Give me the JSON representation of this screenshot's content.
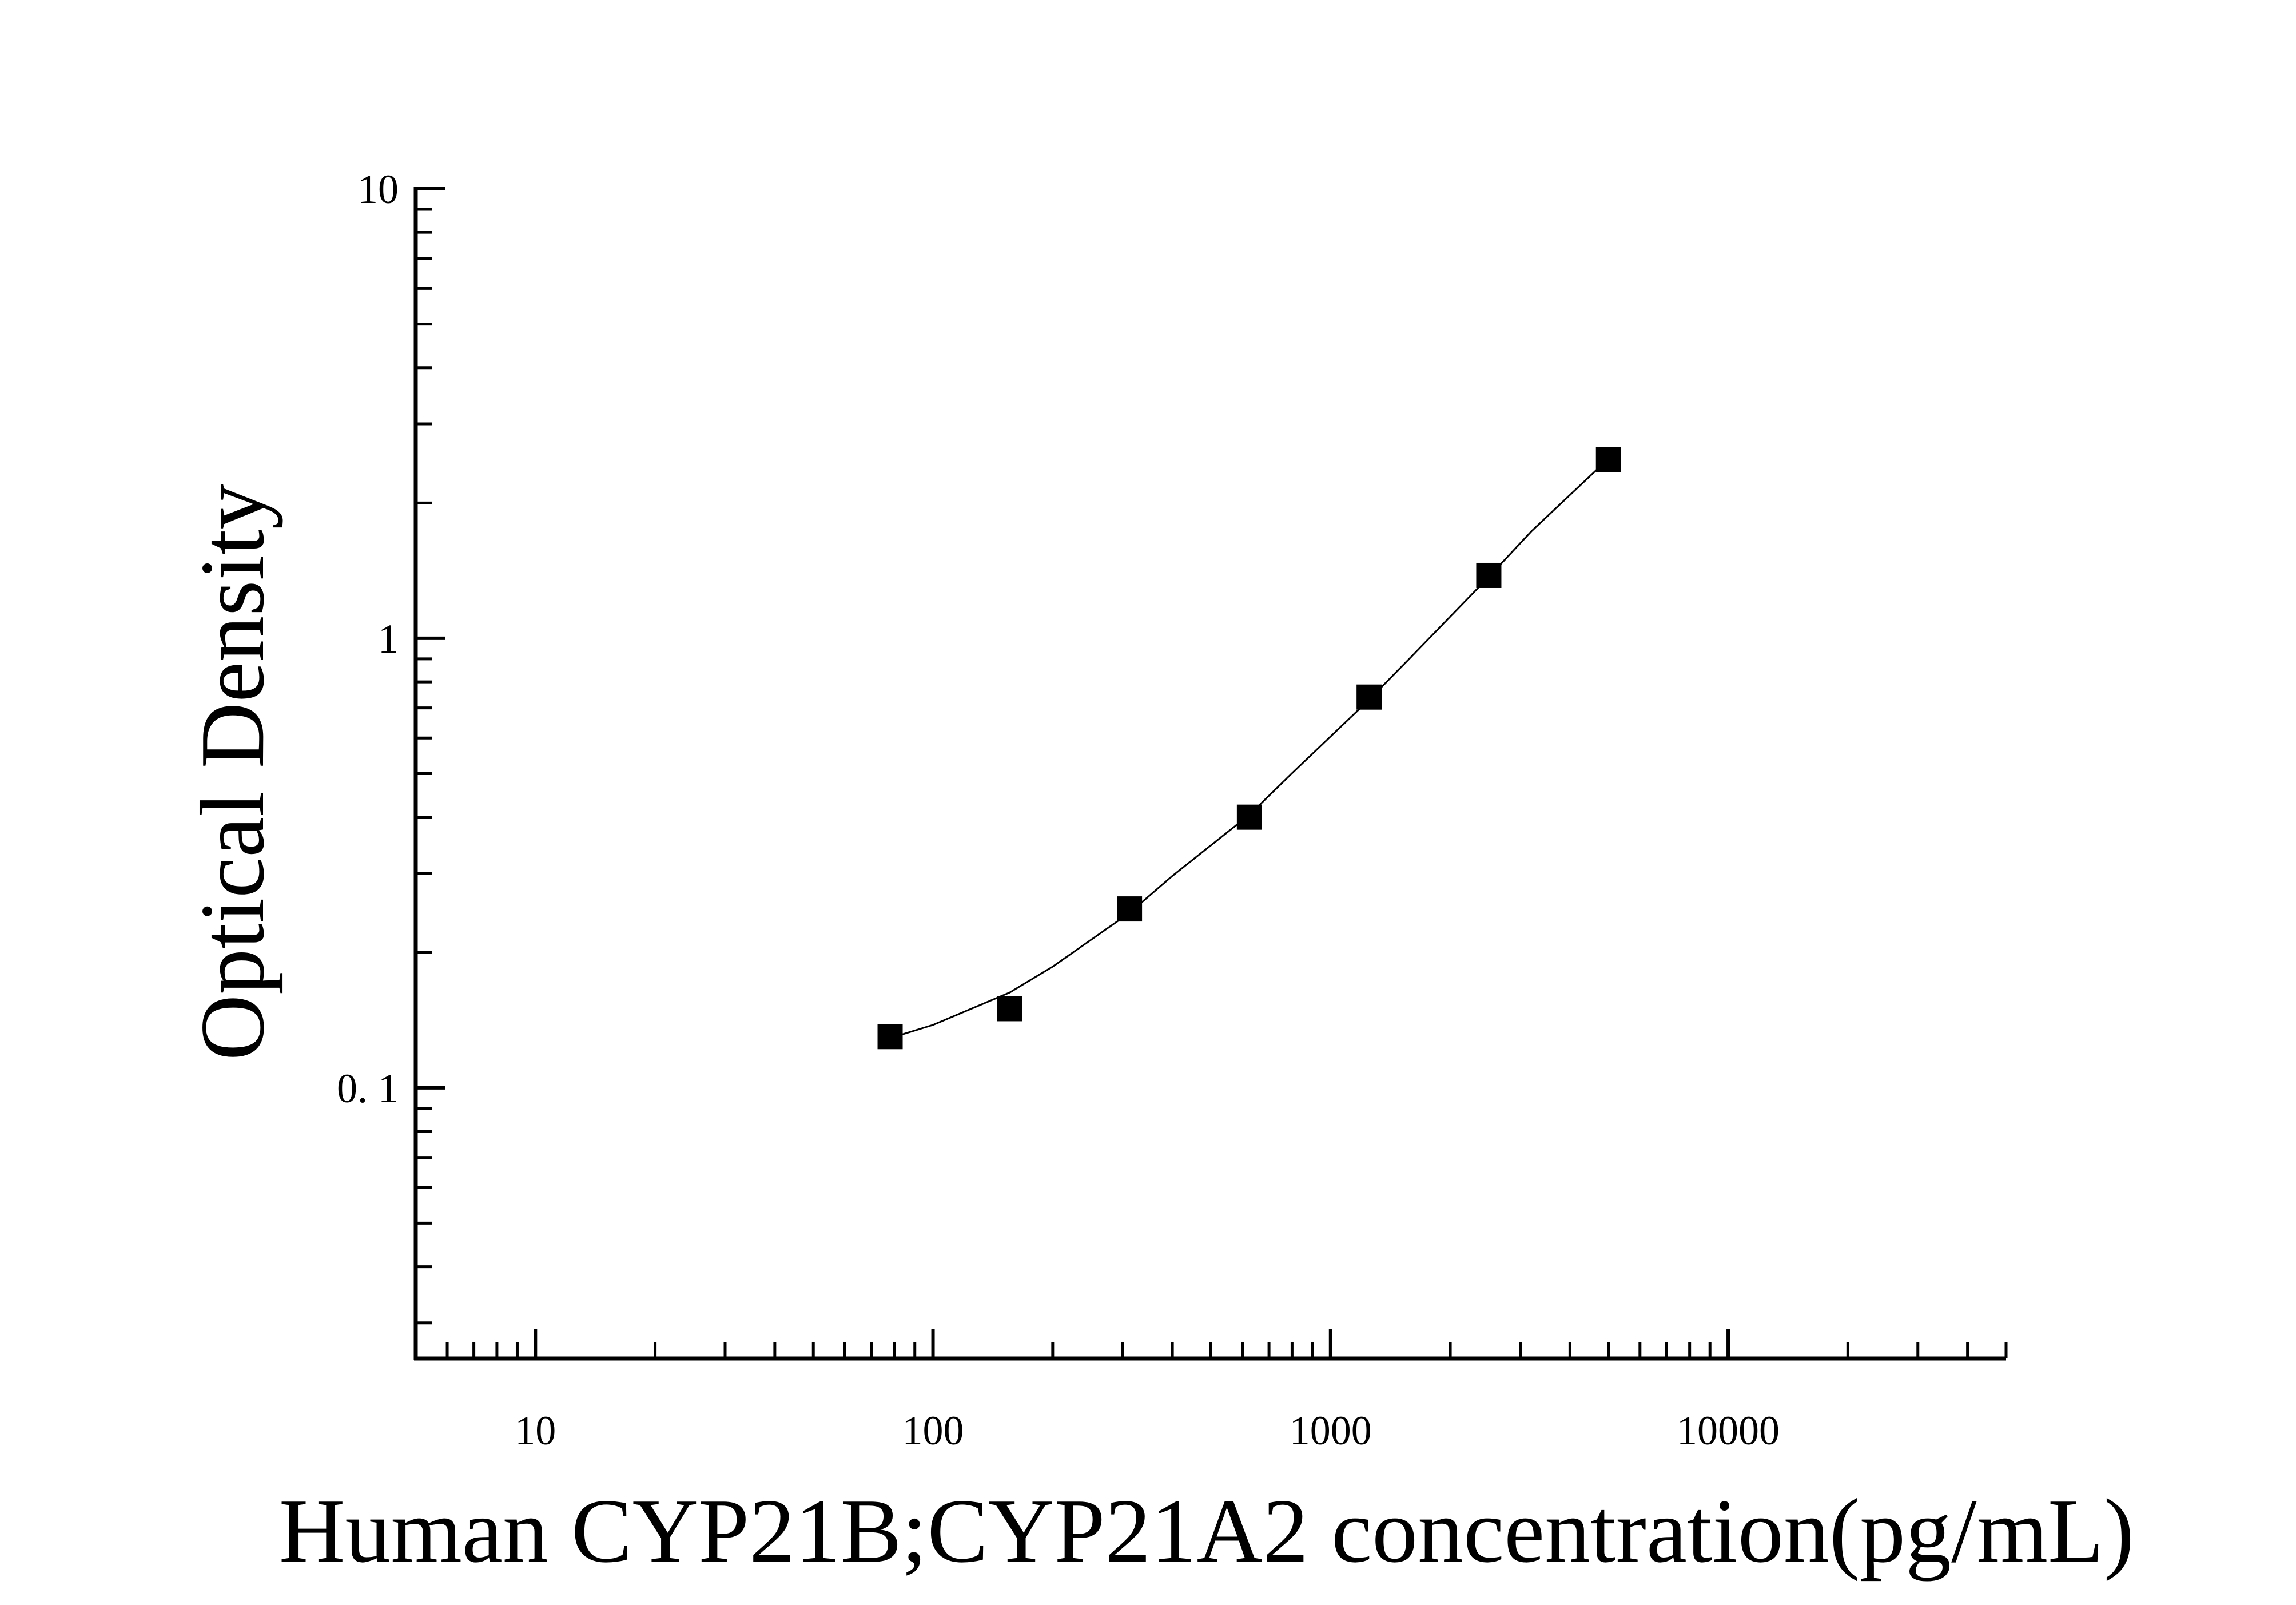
{
  "chart_data": {
    "type": "scatter",
    "xlabel": "Human CYP21B;CYP21A2 concentration(pg/mL)",
    "ylabel": "Optical Density",
    "x_scale": "log",
    "y_scale": "log",
    "xlim": [
      5,
      50000
    ],
    "ylim": [
      0.025,
      10
    ],
    "x_ticks": [
      {
        "value": 10,
        "label": "10"
      },
      {
        "value": 100,
        "label": "100"
      },
      {
        "value": 1000,
        "label": "1000"
      },
      {
        "value": 10000,
        "label": "10000"
      }
    ],
    "y_ticks": [
      {
        "value": 10,
        "label": "10"
      },
      {
        "value": 1,
        "label": "1"
      },
      {
        "value": 0.1,
        "label": "0. 1"
      }
    ],
    "grid": false,
    "legend": "none",
    "marker_color": "#000000",
    "line_color": "#000000",
    "series": [
      {
        "marker": "square",
        "x": [
          78,
          156,
          312,
          625,
          1250,
          2500,
          5000
        ],
        "y": [
          0.13,
          0.15,
          0.25,
          0.4,
          0.74,
          1.38,
          2.5
        ]
      }
    ],
    "fit_curve": {
      "x": [
        78,
        100,
        156,
        200,
        312,
        400,
        625,
        800,
        1250,
        1600,
        2500,
        3200,
        5000
      ],
      "y": [
        0.129,
        0.138,
        0.163,
        0.186,
        0.245,
        0.296,
        0.405,
        0.501,
        0.73,
        0.912,
        1.37,
        1.73,
        2.51
      ]
    }
  }
}
